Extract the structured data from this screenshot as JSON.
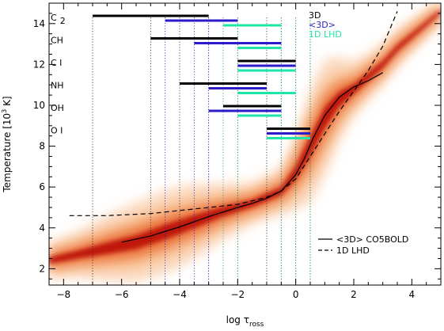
{
  "colors": {
    "3D": "#000000",
    "mean3D": "#2b1bc8",
    "LHD1D": "#1fe6a8",
    "density_core": "#b40000",
    "density_mid": "#e65a1e",
    "density_outer": "#f7b98a",
    "vline_3D": "#222222",
    "vline_mean3D": "#2b1bc8",
    "vline_LHD1D": "#10a070"
  },
  "chart_data": {
    "type": "line",
    "xlabel_main": "log τ",
    "xlabel_sub": "ross",
    "ylabel_main": "Temperature [10",
    "ylabel_sup": "3",
    "ylabel_end": " K]",
    "xlim": [
      -8.5,
      5.0
    ],
    "ylim": [
      1.2,
      15.0
    ],
    "xticks": [
      -8,
      -6,
      -4,
      -2,
      0,
      2,
      4
    ],
    "xtick_labels": [
      "−8",
      "−6",
      "−4",
      "−2",
      "0",
      "2",
      "4"
    ],
    "yticks": [
      2,
      4,
      6,
      8,
      10,
      12,
      14
    ],
    "ytick_labels": [
      "2",
      "4",
      "6",
      "8",
      "10",
      "12",
      "14"
    ],
    "series": [
      {
        "name": "<3D> CO5BOLD",
        "style": "solid",
        "x": [
          -6.0,
          -5.0,
          -4.0,
          -3.0,
          -2.0,
          -1.5,
          -1.0,
          -0.5,
          0.0,
          0.3,
          0.6,
          1.0,
          1.5,
          2.0,
          2.5,
          3.0
        ],
        "y": [
          3.3,
          3.6,
          4.05,
          4.55,
          5.0,
          5.2,
          5.45,
          5.8,
          6.6,
          7.4,
          8.4,
          9.5,
          10.4,
          10.9,
          11.2,
          11.6
        ]
      },
      {
        "name": "1D LHD",
        "style": "dashed",
        "x": [
          -7.8,
          -6.5,
          -5.0,
          -4.0,
          -3.0,
          -2.0,
          -1.0,
          -0.5,
          0.0,
          0.5,
          1.0,
          1.5,
          2.0,
          2.5,
          3.0,
          3.5
        ],
        "y": [
          4.6,
          4.6,
          4.7,
          4.85,
          5.0,
          5.15,
          5.5,
          5.8,
          6.4,
          7.5,
          8.6,
          9.7,
          10.7,
          11.7,
          12.9,
          14.6
        ]
      }
    ],
    "density": {
      "x": [
        -8.5,
        -7.5,
        -6.5,
        -5.5,
        -4.5,
        -3.5,
        -2.5,
        -1.5,
        -0.5,
        0.0,
        0.5,
        1.0,
        1.5,
        2.0,
        2.5,
        3.0,
        3.5,
        4.0,
        4.5,
        5.0
      ],
      "center": [
        2.4,
        2.7,
        3.0,
        3.3,
        3.8,
        4.3,
        4.8,
        5.2,
        5.8,
        6.7,
        8.0,
        9.4,
        10.3,
        10.8,
        11.4,
        12.0,
        12.8,
        13.4,
        14.0,
        14.6
      ],
      "spread": [
        0.8,
        1.0,
        1.4,
        1.7,
        1.8,
        1.6,
        1.2,
        0.9,
        1.0,
        1.6,
        2.4,
        2.5,
        1.8,
        1.2,
        1.0,
        0.9,
        0.8,
        0.7,
        0.6,
        0.5
      ]
    },
    "molecules": [
      {
        "label": "C",
        "subscript": "2",
        "bars": {
          "3D": [
            -7.0,
            -3.0
          ],
          "mean3D": [
            -4.5,
            -2.0
          ],
          "LHD1D": [
            -2.5,
            -0.5
          ]
        }
      },
      {
        "label": "CH",
        "subscript": "",
        "bars": {
          "3D": [
            -5.0,
            -2.0
          ],
          "mean3D": [
            -3.5,
            -0.5
          ],
          "LHD1D": [
            -2.0,
            -0.5
          ]
        }
      },
      {
        "label": "C I",
        "subscript": "",
        "bars": {
          "3D": [
            -2.0,
            0.0
          ],
          "mean3D": [
            -2.0,
            0.0
          ],
          "LHD1D": [
            -2.0,
            0.0
          ]
        }
      },
      {
        "label": "NH",
        "subscript": "",
        "bars": {
          "3D": [
            -4.0,
            -1.0
          ],
          "mean3D": [
            -3.0,
            -1.0
          ],
          "LHD1D": [
            -2.0,
            0.0
          ]
        }
      },
      {
        "label": "OH",
        "subscript": "",
        "bars": {
          "3D": [
            -2.5,
            -0.5
          ],
          "mean3D": [
            -3.0,
            -0.5
          ],
          "LHD1D": [
            -2.0,
            -0.5
          ]
        }
      },
      {
        "label": "O I",
        "subscript": "",
        "bars": {
          "3D": [
            -1.0,
            0.5
          ],
          "mean3D": [
            -1.0,
            0.5
          ],
          "LHD1D": [
            -1.0,
            0.5
          ]
        }
      }
    ],
    "vertical_lines": {
      "3D": [
        -7.0,
        -5.0,
        -4.0,
        -3.0,
        -2.0,
        -1.0,
        0.0,
        0.5
      ],
      "mean3D": [
        -4.5,
        -3.5,
        -3.0,
        -0.5
      ],
      "LHD1D": [
        -2.5,
        -2.0,
        -0.5,
        0.0,
        0.5
      ]
    },
    "legend_top": [
      "3D",
      "<3D>",
      "1D LHD"
    ],
    "legend_bottom": [
      "<3D> CO5BOLD",
      "1D LHD"
    ]
  }
}
